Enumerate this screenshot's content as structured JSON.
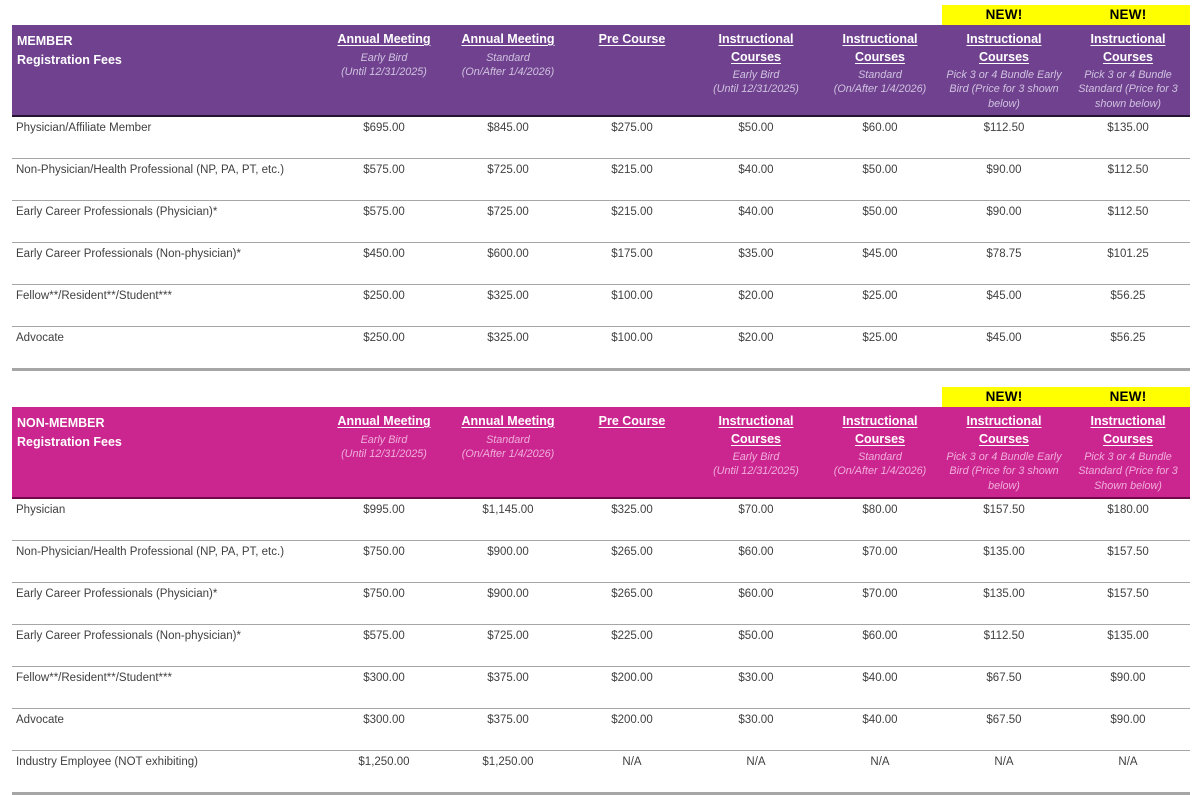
{
  "page": {
    "background": "#FFFFFF",
    "body_text_color": "#3F3F3F",
    "row_border_color": "#A6A6A6"
  },
  "new_badge": {
    "label": "NEW!",
    "bg": "#FFFF00",
    "text_color": "#000000"
  },
  "member_table": {
    "title_line1": "MEMBER",
    "title_line2": "Registration Fees",
    "header_bg": "#70418F",
    "header_text_color": "#FFFFFF",
    "header_bottom_border_color": "#241331",
    "subtitle_color": "#CFC3DF",
    "columns": [
      {
        "title": "Annual Meeting",
        "subtitle": "Early Bird\n(Until 12/31/2025)",
        "is_new": false
      },
      {
        "title": "Annual Meeting",
        "subtitle": "Standard\n(On/After 1/4/2026)",
        "is_new": false
      },
      {
        "title": "Pre Course",
        "subtitle": "",
        "is_new": false
      },
      {
        "title": "Instructional Courses",
        "subtitle": "Early Bird\n(Until 12/31/2025)",
        "is_new": false
      },
      {
        "title": "Instructional Courses",
        "subtitle": "Standard\n(On/After 1/4/2026)",
        "is_new": false
      },
      {
        "title": "Instructional Courses",
        "subtitle": "Pick 3 or 4 Bundle Early Bird (Price for 3 shown below)",
        "is_new": true
      },
      {
        "title": "Instructional Courses",
        "subtitle": "Pick 3 or 4 Bundle Standard (Price for 3 shown below)",
        "is_new": true
      }
    ],
    "rows": [
      {
        "label": "Physician/Affiliate Member",
        "values": [
          "$695.00",
          "$845.00",
          "$275.00",
          "$50.00",
          "$60.00",
          "$112.50",
          "$135.00"
        ]
      },
      {
        "label": "Non-Physician/Health Professional (NP, PA, PT, etc.)",
        "values": [
          "$575.00",
          "$725.00",
          "$215.00",
          "$40.00",
          "$50.00",
          "$90.00",
          "$112.50"
        ]
      },
      {
        "label": "Early Career Professionals (Physician)*",
        "values": [
          "$575.00",
          "$725.00",
          "$215.00",
          "$40.00",
          "$50.00",
          "$90.00",
          "$112.50"
        ]
      },
      {
        "label": "Early Career Professionals (Non-physician)*",
        "values": [
          "$450.00",
          "$600.00",
          "$175.00",
          "$35.00",
          "$45.00",
          "$78.75",
          "$101.25"
        ]
      },
      {
        "label": "Fellow**/Resident**/Student***",
        "values": [
          "$250.00",
          "$325.00",
          "$100.00",
          "$20.00",
          "$25.00",
          "$45.00",
          "$56.25"
        ]
      },
      {
        "label": "Advocate",
        "values": [
          "$250.00",
          "$325.00",
          "$100.00",
          "$20.00",
          "$25.00",
          "$45.00",
          "$56.25"
        ]
      }
    ]
  },
  "nonmember_table": {
    "title_line1": "NON-MEMBER",
    "title_line2": "Registration Fees",
    "header_bg": "#CB2690",
    "header_text_color": "#FFFFFF",
    "header_bottom_border_color": "#70094A",
    "subtitle_color": "#F0AEDB",
    "columns": [
      {
        "title": "Annual Meeting",
        "subtitle": "Early Bird\n(Until 12/31/2025)",
        "is_new": false
      },
      {
        "title": "Annual Meeting",
        "subtitle": "Standard\n(On/After 1/4/2026)",
        "is_new": false
      },
      {
        "title": "Pre Course",
        "subtitle": "",
        "is_new": false
      },
      {
        "title": "Instructional Courses",
        "subtitle": "Early Bird\n(Until 12/31/2025)",
        "is_new": false
      },
      {
        "title": "Instructional Courses",
        "subtitle": "Standard\n(On/After 1/4/2026)",
        "is_new": false
      },
      {
        "title": "Instructional Courses",
        "subtitle": "Pick 3 or 4 Bundle Early Bird (Price for 3 shown below)",
        "is_new": true
      },
      {
        "title": "Instructional Courses",
        "subtitle": "Pick 3 or 4 Bundle Standard (Price for 3 Shown below)",
        "is_new": true
      }
    ],
    "rows": [
      {
        "label": "Physician",
        "values": [
          "$995.00",
          "$1,145.00",
          "$325.00",
          "$70.00",
          "$80.00",
          "$157.50",
          "$180.00"
        ]
      },
      {
        "label": "Non-Physician/Health Professional (NP, PA, PT, etc.)",
        "values": [
          "$750.00",
          "$900.00",
          "$265.00",
          "$60.00",
          "$70.00",
          "$135.00",
          "$157.50"
        ]
      },
      {
        "label": "Early Career Professionals (Physician)*",
        "values": [
          "$750.00",
          "$900.00",
          "$265.00",
          "$60.00",
          "$70.00",
          "$135.00",
          "$157.50"
        ]
      },
      {
        "label": "Early Career Professionals (Non-physician)*",
        "values": [
          "$575.00",
          "$725.00",
          "$225.00",
          "$50.00",
          "$60.00",
          "$112.50",
          "$135.00"
        ]
      },
      {
        "label": "Fellow**/Resident**/Student***",
        "values": [
          "$300.00",
          "$375.00",
          "$200.00",
          "$30.00",
          "$40.00",
          "$67.50",
          "$90.00"
        ]
      },
      {
        "label": "Advocate",
        "values": [
          "$300.00",
          "$375.00",
          "$200.00",
          "$30.00",
          "$40.00",
          "$67.50",
          "$90.00"
        ]
      },
      {
        "label": "Industry Employee (NOT exhibiting)",
        "values": [
          "$1,250.00",
          "$1,250.00",
          "N/A",
          "N/A",
          "N/A",
          "N/A",
          "N/A"
        ]
      }
    ]
  }
}
